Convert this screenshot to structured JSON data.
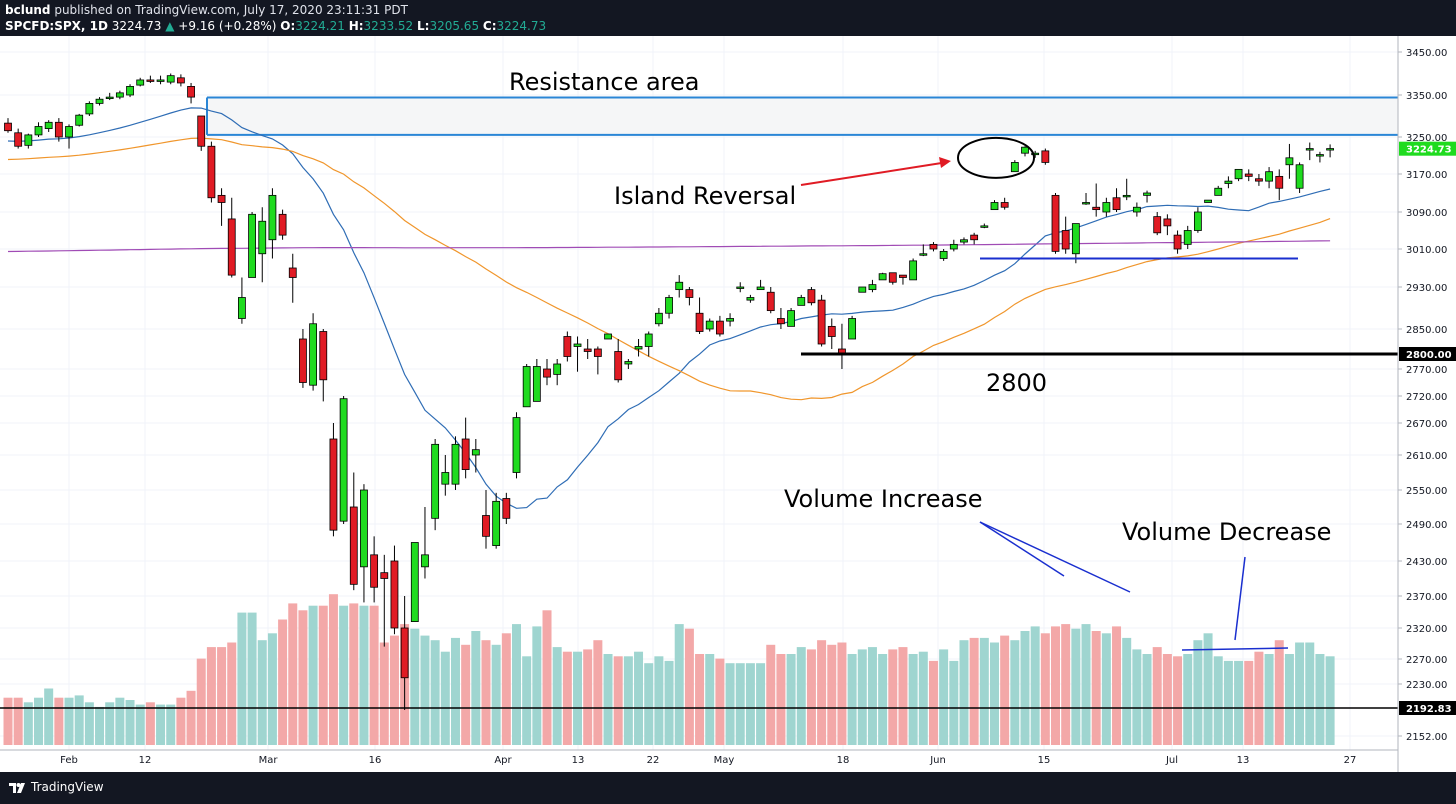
{
  "header": {
    "publisher": "bclund",
    "published_text": "published on TradingView.com, July 17, 2020 23:11:31 PDT",
    "symbol": "SPCFD:SPX, 1D",
    "price": "3224.73",
    "change": "+9.16 (+0.28%)",
    "o_label": "O:",
    "o_value": "3224.21",
    "h_label": "H:",
    "h_value": "3233.52",
    "l_label": "L:",
    "l_value": "3205.65",
    "c_label": "C:",
    "c_value": "3224.73"
  },
  "footer": {
    "brand": "TradingView"
  },
  "colors": {
    "up": "#1fdb1f",
    "down": "#e01b24",
    "vol_up": "#9fd5d0",
    "vol_down": "#f3a8a8",
    "ma20": "#2f6db5",
    "ma50": "#f0962c",
    "ma200": "#a04bb5"
  },
  "chart_data": {
    "type": "candlestick",
    "title": "SPCFD:SPX, 1D",
    "xlabel": "",
    "ylabel": "",
    "ylim": [
      2120,
      3480
    ],
    "y_ticks": [
      "3450.00",
      "3350.00",
      "3250.00",
      "3170.00",
      "3090.00",
      "3010.00",
      "2930.00",
      "2850.00",
      "2770.00",
      "2720.00",
      "2670.00",
      "2610.00",
      "2550.00",
      "2490.00",
      "2430.00",
      "2370.00",
      "2320.00",
      "2270.00",
      "2230.00",
      "2152.00"
    ],
    "x_ticks": [
      "Feb",
      "12",
      "Mar",
      "16",
      "Apr",
      "13",
      "22",
      "May",
      "18",
      "Jun",
      "15",
      "Jul",
      "13",
      "27"
    ],
    "price_tags": {
      "last": "3224.73",
      "line_2800": "2800.00",
      "line_low": "2192.83"
    },
    "candles": [
      [
        3283,
        3295,
        3260,
        3265
      ],
      [
        3260,
        3270,
        3225,
        3230
      ],
      [
        3232,
        3258,
        3225,
        3255
      ],
      [
        3255,
        3285,
        3250,
        3275
      ],
      [
        3270,
        3290,
        3262,
        3285
      ],
      [
        3285,
        3295,
        3240,
        3250
      ],
      [
        3250,
        3280,
        3225,
        3275
      ],
      [
        3278,
        3305,
        3275,
        3302
      ],
      [
        3305,
        3335,
        3300,
        3330
      ],
      [
        3330,
        3345,
        3325,
        3340
      ],
      [
        3345,
        3355,
        3338,
        3345
      ],
      [
        3345,
        3360,
        3340,
        3355
      ],
      [
        3350,
        3375,
        3345,
        3370
      ],
      [
        3373,
        3390,
        3370,
        3385
      ],
      [
        3385,
        3395,
        3378,
        3382
      ],
      [
        3385,
        3395,
        3375,
        3385
      ],
      [
        3380,
        3400,
        3375,
        3395
      ],
      [
        3390,
        3398,
        3370,
        3378
      ],
      [
        3370,
        3378,
        3330,
        3345
      ],
      [
        3300,
        3300,
        3220,
        3230
      ],
      [
        3230,
        3240,
        3110,
        3120
      ],
      [
        3125,
        3140,
        3060,
        3110
      ],
      [
        3075,
        3120,
        2950,
        2955
      ],
      [
        2870,
        2950,
        2860,
        2910
      ],
      [
        2950,
        3090,
        2950,
        3085
      ],
      [
        3000,
        3100,
        2940,
        3070
      ],
      [
        3030,
        3140,
        2990,
        3125
      ],
      [
        3085,
        3095,
        3030,
        3040
      ],
      [
        2970,
        3000,
        2900,
        2950
      ],
      [
        2830,
        2850,
        2735,
        2745
      ],
      [
        2740,
        2880,
        2730,
        2860
      ],
      [
        2845,
        2850,
        2710,
        2750
      ],
      [
        2640,
        2670,
        2470,
        2480
      ],
      [
        2495,
        2720,
        2490,
        2715
      ],
      [
        2520,
        2580,
        2380,
        2390
      ],
      [
        2420,
        2560,
        2360,
        2550
      ],
      [
        2440,
        2470,
        2360,
        2385
      ],
      [
        2410,
        2440,
        2290,
        2400
      ],
      [
        2430,
        2455,
        2310,
        2320
      ],
      [
        2320,
        2370,
        2190,
        2240
      ],
      [
        2330,
        2460,
        2330,
        2460
      ],
      [
        2420,
        2520,
        2400,
        2440
      ],
      [
        2500,
        2640,
        2480,
        2630
      ],
      [
        2560,
        2610,
        2540,
        2580
      ],
      [
        2560,
        2645,
        2550,
        2630
      ],
      [
        2640,
        2680,
        2570,
        2585
      ],
      [
        2610,
        2640,
        2580,
        2620
      ],
      [
        2505,
        2550,
        2450,
        2470
      ],
      [
        2455,
        2545,
        2450,
        2530
      ],
      [
        2535,
        2545,
        2490,
        2500
      ],
      [
        2580,
        2690,
        2570,
        2680
      ],
      [
        2700,
        2780,
        2700,
        2775
      ],
      [
        2710,
        2790,
        2710,
        2775
      ],
      [
        2770,
        2790,
        2740,
        2755
      ],
      [
        2760,
        2790,
        2740,
        2780
      ],
      [
        2835,
        2845,
        2785,
        2795
      ],
      [
        2815,
        2835,
        2765,
        2820
      ],
      [
        2810,
        2830,
        2790,
        2805
      ],
      [
        2810,
        2815,
        2760,
        2795
      ],
      [
        2830,
        2840,
        2840,
        2840
      ],
      [
        2805,
        2830,
        2745,
        2750
      ],
      [
        2780,
        2790,
        2770,
        2785
      ],
      [
        2810,
        2830,
        2795,
        2815
      ],
      [
        2815,
        2845,
        2795,
        2840
      ],
      [
        2860,
        2890,
        2855,
        2880
      ],
      [
        2880,
        2915,
        2870,
        2910
      ],
      [
        2925,
        2955,
        2910,
        2940
      ],
      [
        2925,
        2930,
        2895,
        2910
      ],
      [
        2880,
        2910,
        2840,
        2845
      ],
      [
        2850,
        2870,
        2845,
        2865
      ],
      [
        2865,
        2875,
        2835,
        2840
      ],
      [
        2865,
        2880,
        2855,
        2870
      ],
      [
        2930,
        2940,
        2920,
        2930
      ],
      [
        2905,
        2915,
        2900,
        2910
      ],
      [
        2925,
        2945,
        2925,
        2930
      ],
      [
        2920,
        2930,
        2880,
        2885
      ],
      [
        2870,
        2890,
        2850,
        2860
      ],
      [
        2855,
        2890,
        2855,
        2885
      ],
      [
        2895,
        2915,
        2895,
        2910
      ],
      [
        2925,
        2930,
        2895,
        2900
      ],
      [
        2905,
        2915,
        2815,
        2820
      ],
      [
        2855,
        2870,
        2810,
        2835
      ],
      [
        2810,
        2860,
        2770,
        2800
      ],
      [
        2830,
        2875,
        2830,
        2870
      ],
      [
        2920,
        2920,
        2930,
        2930
      ],
      [
        2925,
        2945,
        2920,
        2935
      ],
      [
        2945,
        2960,
        2945,
        2958
      ],
      [
        2960,
        2960,
        2935,
        2940
      ],
      [
        2955,
        2955,
        2935,
        2950
      ],
      [
        2945,
        2990,
        2945,
        2985
      ],
      [
        3000,
        3020,
        2995,
        3000
      ],
      [
        3020,
        3025,
        3005,
        3010
      ],
      [
        2990,
        3010,
        2985,
        3005
      ],
      [
        3010,
        3030,
        3005,
        3020
      ],
      [
        3025,
        3035,
        3020,
        3030
      ],
      [
        3040,
        3045,
        3020,
        3030
      ],
      [
        3060,
        3065,
        3055,
        3060
      ],
      [
        3095,
        3115,
        3095,
        3110
      ],
      [
        3110,
        3120,
        3095,
        3100
      ],
      [
        3175,
        3200,
        3175,
        3195
      ],
      [
        3215,
        3230,
        3208,
        3228
      ],
      [
        3215,
        3220,
        3205,
        3215
      ],
      [
        3220,
        3225,
        3190,
        3195
      ],
      [
        3125,
        3130,
        3000,
        3005
      ],
      [
        3050,
        3080,
        3000,
        3010
      ],
      [
        3000,
        3060,
        2980,
        3065
      ],
      [
        3110,
        3130,
        3105,
        3110
      ],
      [
        3100,
        3150,
        3080,
        3095
      ],
      [
        3090,
        3120,
        3080,
        3110
      ],
      [
        3120,
        3140,
        3090,
        3095
      ],
      [
        3125,
        3160,
        3115,
        3125
      ],
      [
        3090,
        3110,
        3080,
        3100
      ],
      [
        3125,
        3135,
        3110,
        3130
      ],
      [
        3080,
        3090,
        3040,
        3045
      ],
      [
        3075,
        3085,
        3040,
        3060
      ],
      [
        3040,
        3050,
        3000,
        3010
      ],
      [
        3020,
        3060,
        3010,
        3050
      ],
      [
        3050,
        3100,
        3045,
        3090
      ],
      [
        3110,
        3115,
        3110,
        3115
      ],
      [
        3125,
        3145,
        3125,
        3140
      ],
      [
        3150,
        3165,
        3140,
        3155
      ],
      [
        3160,
        3180,
        3155,
        3180
      ],
      [
        3170,
        3180,
        3155,
        3165
      ],
      [
        3160,
        3170,
        3145,
        3155
      ],
      [
        3155,
        3185,
        3140,
        3175
      ],
      [
        3165,
        3180,
        3115,
        3140
      ],
      [
        3190,
        3235,
        3160,
        3205
      ],
      [
        3140,
        3195,
        3130,
        3190
      ],
      [
        3225,
        3238,
        3200,
        3225
      ],
      [
        3210,
        3218,
        3195,
        3212
      ],
      [
        3224,
        3234,
        3206,
        3225
      ]
    ],
    "volume": [
      66,
      66,
      64,
      66,
      70,
      66,
      66,
      67,
      64,
      62,
      64,
      66,
      65,
      63,
      64,
      63,
      63,
      66,
      69,
      83,
      88,
      88,
      90,
      103,
      103,
      91,
      94,
      100,
      107,
      104,
      106,
      106,
      111,
      106,
      107,
      106,
      106,
      90,
      93,
      98,
      96,
      93,
      91,
      86,
      92,
      89,
      95,
      91,
      89,
      94,
      98,
      84,
      97,
      104,
      88,
      86,
      86,
      87,
      91,
      85,
      84,
      84,
      86,
      81,
      84,
      82,
      98,
      96,
      85,
      85,
      83,
      81,
      81,
      81,
      81,
      89,
      85,
      85,
      88,
      87,
      91,
      89,
      90,
      85,
      87,
      88,
      85,
      87,
      88,
      85,
      86,
      82,
      87,
      82,
      91,
      92,
      92,
      90,
      93,
      91,
      95,
      97,
      94,
      97,
      98,
      96,
      98,
      95,
      94,
      97,
      92,
      87,
      85,
      88,
      85,
      84,
      85,
      91,
      94,
      84,
      82,
      82,
      82,
      86,
      85,
      91,
      85,
      90,
      90,
      85,
      84
    ]
  }
}
